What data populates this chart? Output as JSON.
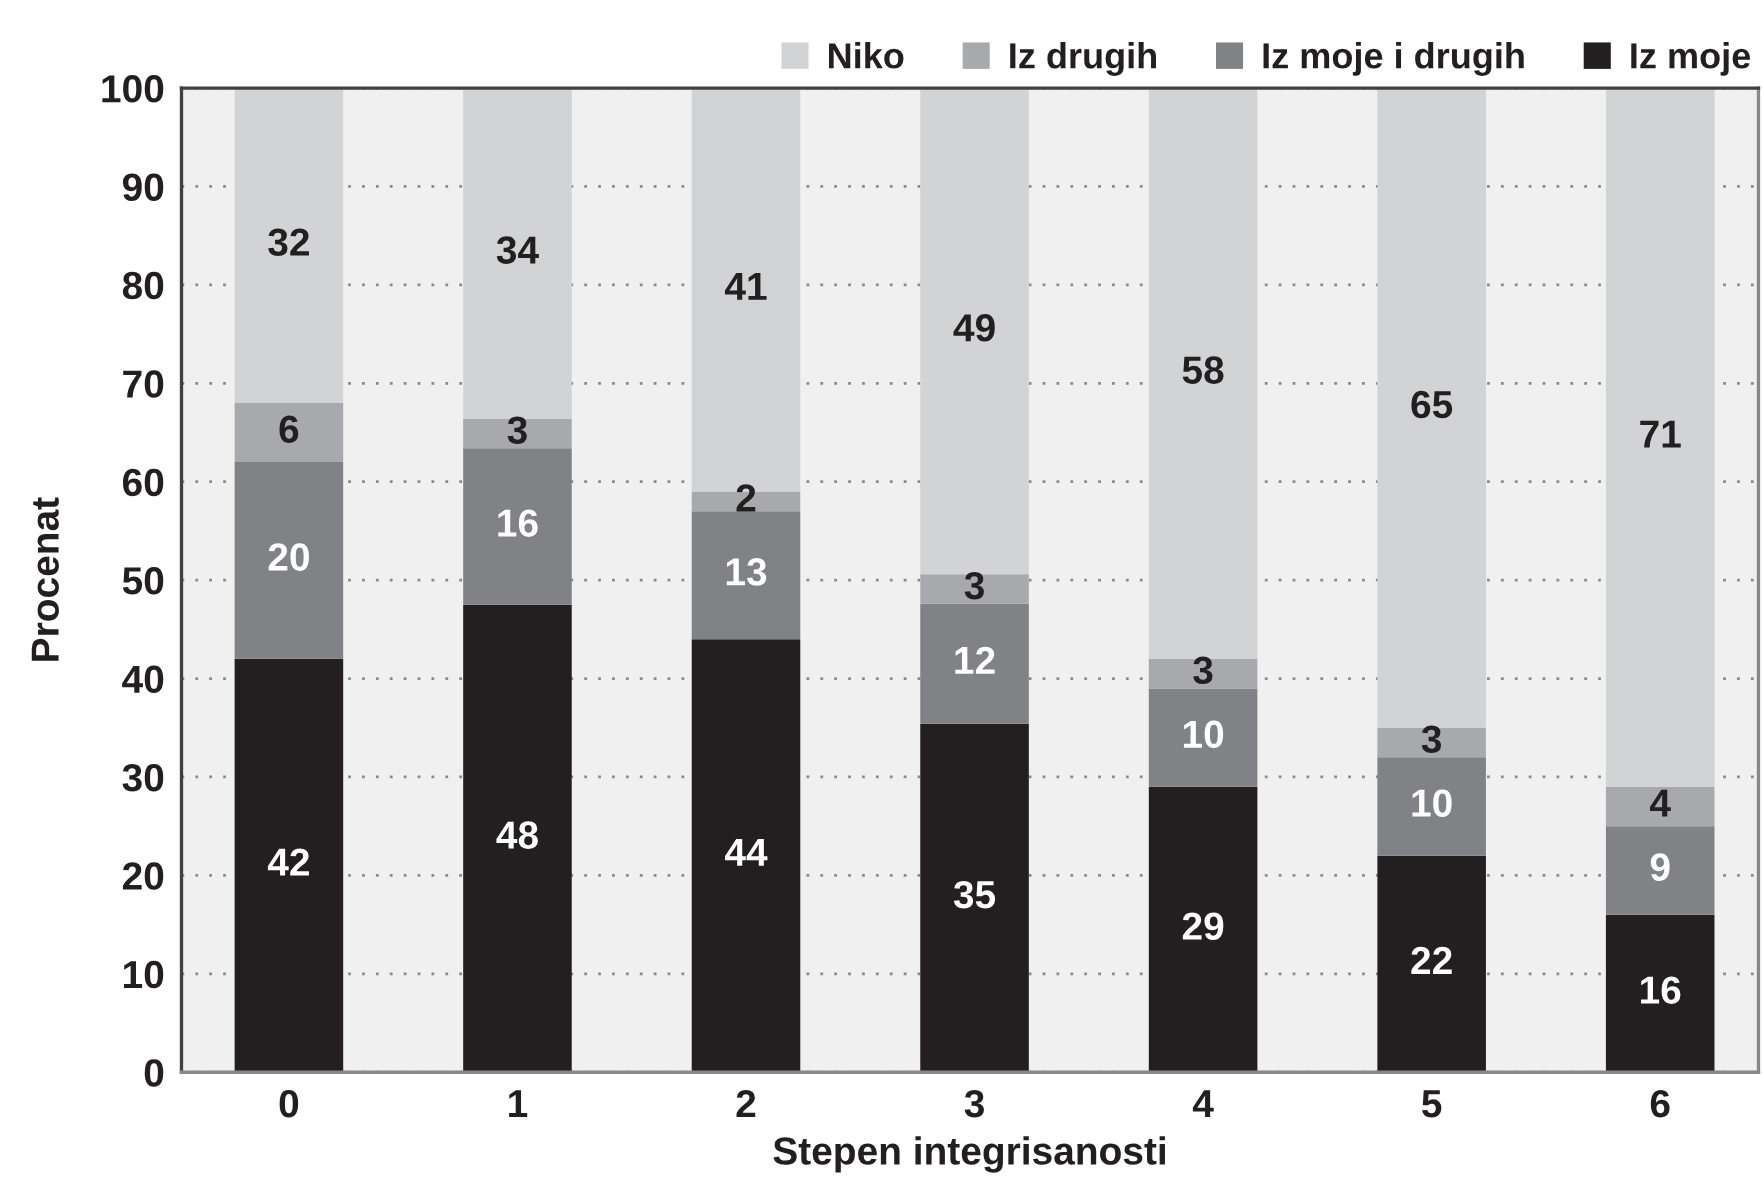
{
  "chart_data": {
    "type": "bar",
    "stacked": true,
    "xlabel": "Stepen integrisanosti",
    "ylabel": "Procenat",
    "categories": [
      "0",
      "1",
      "2",
      "3",
      "4",
      "5",
      "6"
    ],
    "series": [
      {
        "name": "Iz moje",
        "color": "#231f20",
        "values": [
          42,
          47.5,
          44,
          35.4,
          29,
          22,
          16
        ],
        "value_labels": [
          "42",
          "48",
          "44",
          "35",
          "29",
          "22",
          "16"
        ]
      },
      {
        "name": "Iz moje i drugih",
        "color": "#808285",
        "values": [
          20,
          15.9,
          13,
          12.2,
          10,
          10,
          9
        ],
        "value_labels": [
          "20",
          "16",
          "13",
          "12",
          "10",
          "10",
          "9"
        ]
      },
      {
        "name": "Iz drugih",
        "color": "#a7a9ac",
        "values": [
          6,
          3.0,
          2,
          3.0,
          3,
          3,
          4
        ],
        "value_labels": [
          "6",
          "3",
          "2",
          "3",
          "3",
          "3",
          "4"
        ]
      },
      {
        "name": "Niko",
        "color": "#d1d3d4",
        "values": [
          32,
          33.6,
          41,
          49.4,
          58,
          65,
          71
        ],
        "value_labels": [
          "32",
          "34",
          "41",
          "49",
          "58",
          "65",
          "71"
        ]
      }
    ],
    "ylim": [
      0,
      100
    ],
    "yticks": [
      0,
      10,
      20,
      30,
      40,
      50,
      60,
      70,
      80,
      90,
      100
    ],
    "grid": "y",
    "legend": "top right"
  }
}
